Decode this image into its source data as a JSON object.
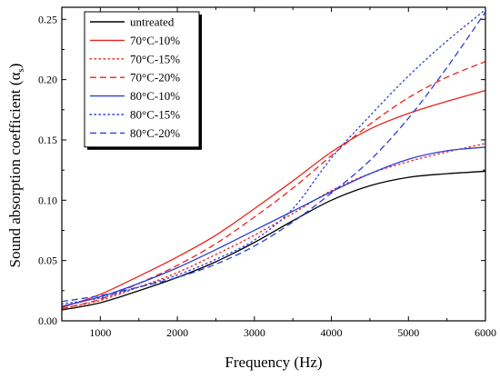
{
  "chart_data": {
    "type": "line",
    "title": "",
    "xlabel": "Frequency (Hz)",
    "ylabel": "Sound absorption coefficient (α",
    "ylabel_sub": "s",
    "ylabel_close": ")",
    "xlim": [
      500,
      6000
    ],
    "ylim": [
      0.0,
      0.26
    ],
    "xticks": [
      "1000",
      "2000",
      "3000",
      "4000",
      "5000",
      "6000"
    ],
    "yticks": [
      "0.00",
      "0.05",
      "0.10",
      "0.15",
      "0.20",
      "0.25"
    ],
    "grid": false,
    "legend_position": "top-left",
    "x": [
      500,
      1000,
      1500,
      2000,
      2500,
      3000,
      3500,
      4000,
      4500,
      5000,
      5500,
      6000
    ],
    "series": [
      {
        "name": "untreated",
        "color": "#000000",
        "dash": "solid",
        "values": [
          0.009,
          0.015,
          0.025,
          0.036,
          0.049,
          0.065,
          0.083,
          0.1,
          0.112,
          0.119,
          0.122,
          0.124
        ]
      },
      {
        "name": "70°C-10%",
        "color": "#e8231c",
        "dash": "solid",
        "values": [
          0.011,
          0.022,
          0.037,
          0.053,
          0.071,
          0.093,
          0.116,
          0.14,
          0.159,
          0.172,
          0.182,
          0.191
        ]
      },
      {
        "name": "70°C-15%",
        "color": "#e8231c",
        "dash": "dotted",
        "values": [
          0.01,
          0.017,
          0.028,
          0.04,
          0.055,
          0.071,
          0.089,
          0.108,
          0.122,
          0.132,
          0.14,
          0.147
        ]
      },
      {
        "name": "70°C-20%",
        "color": "#e8231c",
        "dash": "dashed",
        "values": [
          0.01,
          0.018,
          0.031,
          0.046,
          0.064,
          0.086,
          0.11,
          0.137,
          0.163,
          0.185,
          0.202,
          0.215
        ]
      },
      {
        "name": "80°C-10%",
        "color": "#2b3fd8",
        "dash": "solid",
        "values": [
          0.012,
          0.02,
          0.031,
          0.044,
          0.059,
          0.075,
          0.091,
          0.107,
          0.122,
          0.134,
          0.141,
          0.144
        ]
      },
      {
        "name": "80°C-15%",
        "color": "#2b3fd8",
        "dash": "dotted",
        "values": [
          0.014,
          0.019,
          0.028,
          0.038,
          0.051,
          0.067,
          0.093,
          0.135,
          0.17,
          0.203,
          0.232,
          0.258
        ]
      },
      {
        "name": "80°C-20%",
        "color": "#2b3fd8",
        "dash": "dashed",
        "values": [
          0.016,
          0.021,
          0.028,
          0.036,
          0.047,
          0.062,
          0.082,
          0.106,
          0.133,
          0.168,
          0.21,
          0.256
        ]
      }
    ]
  }
}
